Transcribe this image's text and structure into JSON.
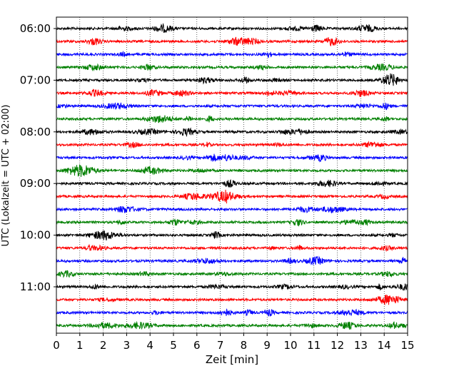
{
  "chart_data": {
    "type": "line",
    "title": "",
    "xlabel": "Zeit  [min]",
    "ylabel": "UTC (Lokalzeit = UTC + 02:00)",
    "xlim": [
      0,
      15
    ],
    "x_ticks": [
      "0",
      "1",
      "2",
      "3",
      "4",
      "5",
      "6",
      "7",
      "8",
      "9",
      "10",
      "11",
      "12",
      "13",
      "14",
      "15"
    ],
    "y_tick_labels": [
      "06:00",
      "07:00",
      "08:00",
      "09:00",
      "10:00",
      "11:00"
    ],
    "grid": "vertical dotted at each minute",
    "legend": "none",
    "trace_interval_minutes": 15,
    "trace_colors": [
      "#000000",
      "#ff0000",
      "#0000ff",
      "#008000"
    ],
    "series": [
      {
        "start": "06:00",
        "color": "#000000"
      },
      {
        "start": "06:15",
        "color": "#ff0000"
      },
      {
        "start": "06:30",
        "color": "#0000ff"
      },
      {
        "start": "06:45",
        "color": "#008000"
      },
      {
        "start": "07:00",
        "color": "#000000"
      },
      {
        "start": "07:15",
        "color": "#ff0000"
      },
      {
        "start": "07:30",
        "color": "#0000ff"
      },
      {
        "start": "07:45",
        "color": "#008000"
      },
      {
        "start": "08:00",
        "color": "#000000"
      },
      {
        "start": "08:15",
        "color": "#ff0000"
      },
      {
        "start": "08:30",
        "color": "#0000ff"
      },
      {
        "start": "08:45",
        "color": "#008000"
      },
      {
        "start": "09:00",
        "color": "#000000"
      },
      {
        "start": "09:15",
        "color": "#ff0000"
      },
      {
        "start": "09:30",
        "color": "#0000ff"
      },
      {
        "start": "09:45",
        "color": "#008000"
      },
      {
        "start": "10:00",
        "color": "#000000"
      },
      {
        "start": "10:15",
        "color": "#ff0000"
      },
      {
        "start": "10:30",
        "color": "#0000ff"
      },
      {
        "start": "10:45",
        "color": "#008000"
      },
      {
        "start": "11:00",
        "color": "#000000"
      },
      {
        "start": "11:15",
        "color": "#ff0000"
      },
      {
        "start": "11:30",
        "color": "#0000ff"
      },
      {
        "start": "11:45",
        "color": "#008000"
      }
    ]
  }
}
